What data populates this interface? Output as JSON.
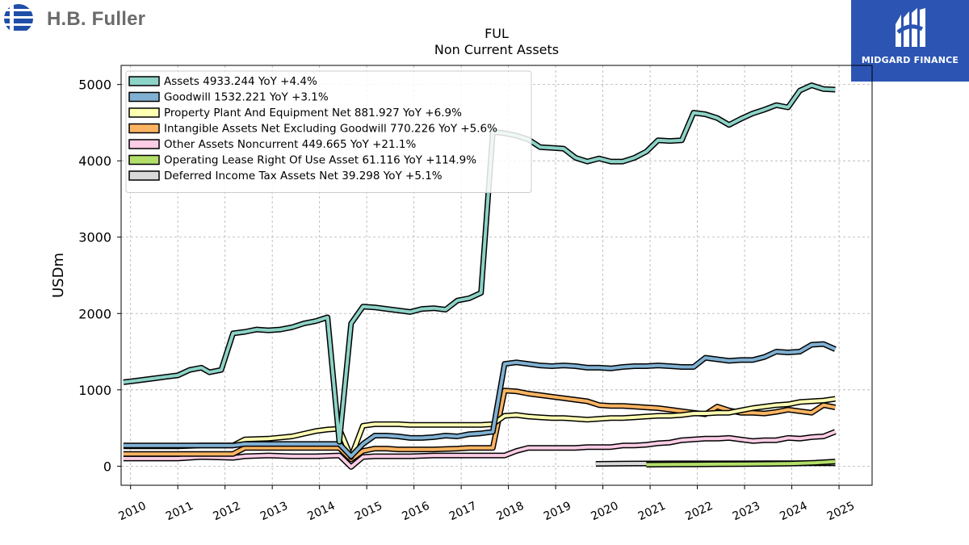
{
  "header": {
    "brand_left": "H.B. Fuller",
    "brand_right": "MIDGARD FINANCE"
  },
  "colors": {
    "assets": "#8dd3c7",
    "goodwill": "#80b1d3",
    "ppe": "#ffffb3",
    "intangible": "#fdb462",
    "other": "#fccde5",
    "lease": "#b3de69",
    "deferred": "#d9d9d9",
    "brand_blue": "#2c55b3",
    "logo_blue": "#1f4fa8"
  },
  "chart_data": {
    "type": "line",
    "title": "FUL",
    "subtitle": "Non Current  Assets",
    "ylabel": "USDm",
    "xlabel": "",
    "xlim": [
      2009.8,
      2025.7
    ],
    "ylim": [
      -250,
      5250
    ],
    "yticks": [
      0,
      1000,
      2000,
      3000,
      4000,
      5000
    ],
    "xticks": [
      2010,
      2011,
      2012,
      2013,
      2014,
      2015,
      2016,
      2017,
      2018,
      2019,
      2020,
      2021,
      2022,
      2023,
      2024,
      2025
    ],
    "grid": true,
    "legend_position": "top-left",
    "legend": [
      "Assets  4933.244 YoY +4.4%",
      "Goodwill  1532.221 YoY +3.1%",
      "Property Plant And Equipment Net  881.927 YoY +6.9%",
      "Intangible Assets Net Excluding Goodwill  770.226 YoY +5.6%",
      "Other Assets Noncurrent  449.665 YoY +21.1%",
      "Operating Lease Right Of Use Asset  61.116 YoY +114.9%",
      "Deferred Income Tax Assets Net  39.298 YoY +5.1%"
    ],
    "series": [
      {
        "name": "Assets",
        "color_key": "assets",
        "x": [
          2009.85,
          2010.0,
          2010.25,
          2010.5,
          2010.75,
          2011.0,
          2011.25,
          2011.5,
          2011.67,
          2011.92,
          2012.17,
          2012.42,
          2012.67,
          2012.92,
          2013.17,
          2013.42,
          2013.67,
          2013.92,
          2014.17,
          2014.42,
          2014.67,
          2014.92,
          2015.17,
          2015.42,
          2015.67,
          2015.92,
          2016.17,
          2016.42,
          2016.67,
          2016.92,
          2017.17,
          2017.42,
          2017.67,
          2017.92,
          2018.17,
          2018.42,
          2018.67,
          2018.92,
          2019.17,
          2019.42,
          2019.67,
          2019.92,
          2020.17,
          2020.42,
          2020.67,
          2020.92,
          2021.17,
          2021.42,
          2021.67,
          2021.92,
          2022.17,
          2022.42,
          2022.67,
          2022.92,
          2023.17,
          2023.42,
          2023.67,
          2023.92,
          2024.17,
          2024.42,
          2024.67,
          2024.92
        ],
        "values": [
          1100,
          1110,
          1130,
          1150,
          1170,
          1190,
          1260,
          1290,
          1230,
          1260,
          1740,
          1760,
          1790,
          1780,
          1790,
          1820,
          1870,
          1900,
          1950,
          320,
          1870,
          2090,
          2080,
          2060,
          2040,
          2020,
          2060,
          2070,
          2050,
          2170,
          2200,
          2270,
          4380,
          4360,
          4330,
          4280,
          4180,
          4170,
          4160,
          4040,
          3990,
          4030,
          3990,
          3990,
          4040,
          4120,
          4270,
          4260,
          4270,
          4630,
          4610,
          4560,
          4470,
          4550,
          4620,
          4670,
          4730,
          4700,
          4920,
          4990,
          4940,
          4933
        ]
      },
      {
        "name": "Goodwill",
        "color_key": "goodwill",
        "x": [
          2009.85,
          2012.17,
          2012.42,
          2014.42,
          2014.67,
          2014.92,
          2015.17,
          2015.42,
          2015.67,
          2015.92,
          2016.17,
          2016.42,
          2016.67,
          2016.92,
          2017.17,
          2017.42,
          2017.67,
          2017.92,
          2018.17,
          2018.42,
          2018.67,
          2018.92,
          2019.17,
          2019.42,
          2019.67,
          2019.92,
          2020.17,
          2020.42,
          2020.67,
          2020.92,
          2021.17,
          2021.42,
          2021.67,
          2021.92,
          2022.17,
          2022.42,
          2022.67,
          2022.92,
          2023.17,
          2023.42,
          2023.67,
          2023.92,
          2024.17,
          2024.42,
          2024.67,
          2024.92
        ],
        "values": [
          270,
          270,
          290,
          290,
          130,
          290,
          400,
          400,
          390,
          370,
          370,
          380,
          400,
          390,
          420,
          430,
          450,
          1340,
          1360,
          1340,
          1320,
          1310,
          1320,
          1310,
          1290,
          1290,
          1280,
          1300,
          1310,
          1310,
          1320,
          1310,
          1300,
          1300,
          1420,
          1400,
          1380,
          1390,
          1390,
          1430,
          1500,
          1490,
          1500,
          1590,
          1600,
          1532
        ]
      },
      {
        "name": "Property Plant And Equipment Net",
        "color_key": "ppe",
        "x": [
          2009.85,
          2011.0,
          2011.5,
          2012.17,
          2012.42,
          2012.92,
          2013.42,
          2013.92,
          2014.17,
          2014.42,
          2014.67,
          2014.92,
          2015.17,
          2015.42,
          2015.67,
          2015.92,
          2016.17,
          2016.42,
          2016.67,
          2016.92,
          2017.17,
          2017.42,
          2017.67,
          2017.92,
          2018.17,
          2018.42,
          2018.67,
          2018.92,
          2019.17,
          2019.42,
          2019.67,
          2019.92,
          2020.17,
          2020.42,
          2020.67,
          2020.92,
          2021.17,
          2021.42,
          2021.67,
          2021.92,
          2022.17,
          2022.42,
          2022.67,
          2022.92,
          2023.17,
          2023.42,
          2023.67,
          2023.92,
          2024.17,
          2024.42,
          2024.67,
          2024.92
        ],
        "values": [
          260,
          260,
          270,
          270,
          350,
          360,
          390,
          460,
          480,
          490,
          120,
          530,
          550,
          550,
          550,
          540,
          540,
          540,
          540,
          540,
          540,
          540,
          550,
          660,
          670,
          650,
          640,
          630,
          630,
          620,
          610,
          620,
          630,
          630,
          640,
          650,
          660,
          660,
          670,
          690,
          690,
          700,
          700,
          730,
          760,
          780,
          800,
          810,
          840,
          850,
          860,
          882
        ]
      },
      {
        "name": "Intangible Assets Net Excluding Goodwill",
        "color_key": "intangible",
        "x": [
          2009.85,
          2012.17,
          2012.42,
          2013.92,
          2014.42,
          2014.67,
          2014.92,
          2015.17,
          2015.42,
          2015.67,
          2015.92,
          2016.42,
          2016.92,
          2017.17,
          2017.42,
          2017.67,
          2017.92,
          2018.17,
          2018.42,
          2018.67,
          2018.92,
          2019.17,
          2019.42,
          2019.67,
          2019.92,
          2020.17,
          2020.42,
          2020.67,
          2020.92,
          2021.17,
          2021.42,
          2021.67,
          2021.92,
          2022.17,
          2022.42,
          2022.67,
          2022.92,
          2023.17,
          2023.42,
          2023.67,
          2023.92,
          2024.17,
          2024.42,
          2024.67,
          2024.92
        ],
        "values": [
          160,
          160,
          240,
          240,
          240,
          90,
          200,
          230,
          230,
          220,
          220,
          220,
          230,
          240,
          240,
          240,
          990,
          980,
          950,
          930,
          910,
          890,
          870,
          850,
          800,
          790,
          790,
          780,
          770,
          760,
          740,
          720,
          700,
          680,
          780,
          730,
          700,
          700,
          690,
          710,
          740,
          720,
          700,
          800,
          770
        ]
      },
      {
        "name": "Other Assets Noncurrent",
        "color_key": "other",
        "x": [
          2009.85,
          2011.0,
          2011.5,
          2012.17,
          2012.42,
          2012.92,
          2013.42,
          2013.92,
          2014.42,
          2014.67,
          2014.92,
          2015.17,
          2015.42,
          2015.67,
          2015.92,
          2016.42,
          2016.92,
          2017.42,
          2017.67,
          2017.92,
          2018.17,
          2018.42,
          2018.67,
          2018.92,
          2019.17,
          2019.42,
          2019.67,
          2019.92,
          2020.17,
          2020.42,
          2020.67,
          2020.92,
          2021.17,
          2021.42,
          2021.67,
          2021.92,
          2022.17,
          2022.42,
          2022.67,
          2022.92,
          2023.17,
          2023.42,
          2023.67,
          2023.92,
          2024.17,
          2024.42,
          2024.67,
          2024.92
        ],
        "values": [
          100,
          100,
          120,
          110,
          130,
          140,
          130,
          130,
          140,
          -10,
          120,
          130,
          130,
          130,
          130,
          140,
          140,
          140,
          140,
          140,
          200,
          240,
          240,
          240,
          240,
          240,
          250,
          250,
          250,
          270,
          270,
          280,
          300,
          310,
          340,
          350,
          360,
          360,
          370,
          350,
          330,
          340,
          340,
          370,
          360,
          380,
          390,
          450
        ]
      },
      {
        "name": "Operating Lease Right Of Use Asset",
        "color_key": "lease",
        "x": [
          2020.92,
          2021.5,
          2022.0,
          2022.5,
          2023.0,
          2023.5,
          2024.0,
          2024.5,
          2024.92
        ],
        "values": [
          20,
          22,
          24,
          26,
          28,
          30,
          35,
          45,
          61
        ]
      },
      {
        "name": "Deferred Income Tax Assets Net",
        "color_key": "deferred",
        "x": [
          2019.85,
          2020.5,
          2021.0,
          2021.5,
          2022.0,
          2022.5,
          2023.0,
          2023.5,
          2024.0,
          2024.5,
          2024.92
        ],
        "values": [
          30,
          34,
          36,
          37,
          37,
          37,
          37,
          38,
          38,
          38,
          39
        ]
      }
    ]
  }
}
